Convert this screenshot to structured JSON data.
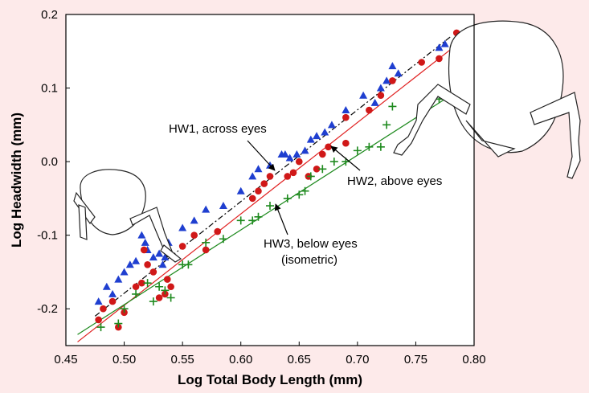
{
  "chart_data": {
    "type": "scatter",
    "x_label": "Log Total Body Length (mm)",
    "y_label": "Log Headwidth (mm)",
    "xlim": [
      0.45,
      0.8
    ],
    "ylim": [
      -0.25,
      0.2
    ],
    "xticks": [
      0.45,
      {
        "value": 0.5,
        "label": "0.50"
      },
      0.55,
      {
        "value": 0.6,
        "label": "0.60"
      },
      0.65,
      {
        "value": 0.7,
        "label": "0.70"
      },
      0.75,
      {
        "value": 0.8,
        "label": "0.80"
      }
    ],
    "yticks": [
      0.2,
      0.1,
      {
        "value": 0,
        "label": "0.0"
      },
      -0.1,
      -0.2
    ],
    "annotations": [
      {
        "text": "HW1, across eyes"
      },
      {
        "text": "HW2, above eyes"
      },
      {
        "text": "HW3, below eyes"
      },
      {
        "text": "(isometric)"
      }
    ],
    "series": [
      {
        "marker": "triangle",
        "color": "#1f3fd0",
        "line_color": "#000000",
        "line_style": "dashdot",
        "x": [
          0.478,
          0.485,
          0.49,
          0.495,
          0.5,
          0.505,
          0.51,
          0.515,
          0.518,
          0.52,
          0.525,
          0.53,
          0.533,
          0.535,
          0.538,
          0.55,
          0.56,
          0.57,
          0.585,
          0.6,
          0.61,
          0.615,
          0.625,
          0.635,
          0.638,
          0.642,
          0.648,
          0.655,
          0.66,
          0.665,
          0.672,
          0.678,
          0.69,
          0.705,
          0.715,
          0.72,
          0.725,
          0.73,
          0.735,
          0.77,
          0.775
        ],
        "values": [
          -0.19,
          -0.17,
          -0.18,
          -0.16,
          -0.15,
          -0.14,
          -0.135,
          -0.1,
          -0.11,
          -0.12,
          -0.13,
          -0.125,
          -0.14,
          -0.13,
          -0.11,
          -0.09,
          -0.08,
          -0.065,
          -0.06,
          -0.04,
          -0.02,
          -0.01,
          -0.005,
          0.01,
          0.01,
          0.005,
          0.01,
          0.015,
          0.03,
          0.035,
          0.04,
          0.05,
          0.07,
          0.09,
          0.08,
          0.1,
          0.11,
          0.13,
          0.12,
          0.155,
          0.16
        ],
        "trend_x": [
          0.475,
          0.78
        ],
        "trend_y": [
          -0.21,
          0.17
        ]
      },
      {
        "marker": "circle",
        "color": "#d01818",
        "line_color": "#e02020",
        "line_style": "solid",
        "x": [
          0.478,
          0.482,
          0.49,
          0.495,
          0.5,
          0.51,
          0.515,
          0.517,
          0.52,
          0.525,
          0.53,
          0.535,
          0.537,
          0.54,
          0.55,
          0.56,
          0.57,
          0.58,
          0.61,
          0.615,
          0.62,
          0.625,
          0.64,
          0.645,
          0.65,
          0.658,
          0.665,
          0.67,
          0.675,
          0.69,
          0.69,
          0.71,
          0.72,
          0.73,
          0.755,
          0.77,
          0.785
        ],
        "values": [
          -0.215,
          -0.2,
          -0.19,
          -0.225,
          -0.205,
          -0.17,
          -0.165,
          -0.12,
          -0.14,
          -0.15,
          -0.185,
          -0.18,
          -0.16,
          -0.17,
          -0.115,
          -0.1,
          -0.12,
          -0.095,
          -0.05,
          -0.04,
          -0.03,
          -0.02,
          -0.02,
          -0.015,
          0,
          -0.02,
          -0.01,
          0.01,
          0.02,
          0.025,
          0.06,
          0.07,
          0.09,
          0.11,
          0.135,
          0.14,
          0.175
        ],
        "trend_x": [
          0.46,
          0.79
        ],
        "trend_y": [
          -0.245,
          0.165
        ]
      },
      {
        "marker": "plus",
        "color": "#1e8a1e",
        "line_color": "#1e8a1e",
        "line_style": "solid",
        "x": [
          0.48,
          0.495,
          0.5,
          0.51,
          0.52,
          0.525,
          0.53,
          0.535,
          0.54,
          0.55,
          0.555,
          0.57,
          0.585,
          0.6,
          0.61,
          0.615,
          0.625,
          0.64,
          0.65,
          0.655,
          0.66,
          0.67,
          0.68,
          0.69,
          0.7,
          0.71,
          0.72,
          0.725,
          0.73,
          0.77
        ],
        "values": [
          -0.225,
          -0.22,
          -0.2,
          -0.18,
          -0.165,
          -0.19,
          -0.17,
          -0.175,
          -0.185,
          -0.14,
          -0.14,
          -0.11,
          -0.105,
          -0.08,
          -0.08,
          -0.075,
          -0.06,
          -0.05,
          -0.045,
          -0.04,
          -0.02,
          -0.01,
          0,
          0,
          0.015,
          0.02,
          0.02,
          0.05,
          0.075,
          0.085
        ],
        "trend_x": [
          0.46,
          0.78
        ],
        "trend_y": [
          -0.235,
          0.09
        ]
      }
    ]
  }
}
